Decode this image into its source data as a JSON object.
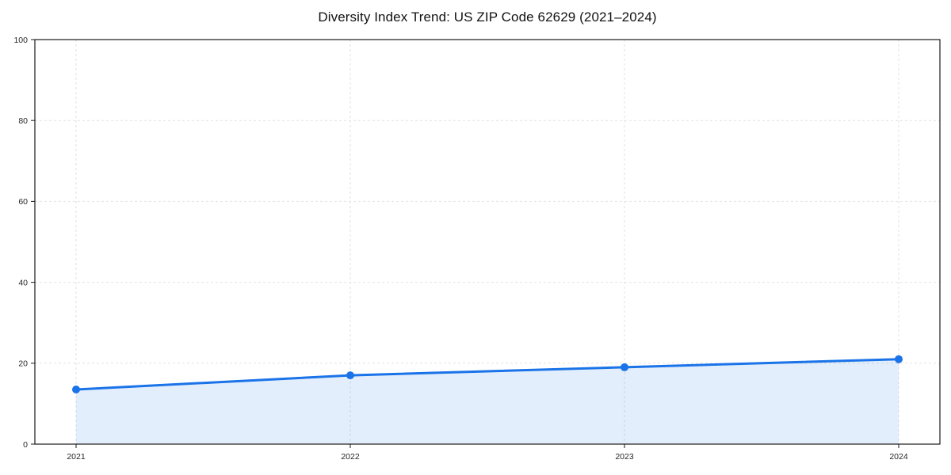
{
  "chart_data": {
    "type": "line",
    "title": "Diversity Index Trend: US ZIP Code 62629 (2021–2024)",
    "categories": [
      "2021",
      "2022",
      "2023",
      "2024"
    ],
    "series": [
      {
        "name": "Diversity Index",
        "values": [
          13.5,
          17,
          19,
          21
        ]
      }
    ],
    "xlabel": "",
    "ylabel": "",
    "ylim": [
      0,
      100
    ],
    "yticks": [
      0,
      20,
      40,
      60,
      80,
      100
    ],
    "grid": true,
    "grid_style": "dashed",
    "legend": false,
    "area_fill": true,
    "marker": "circle",
    "colors": {
      "line": "#1a73e8",
      "marker": "#1a73e8",
      "fill": "rgba(26, 115, 232, 0.12)",
      "grid": "#e2e2e2",
      "spine": "#1a1a1a",
      "tick": "#1a1a1a",
      "tick_label": "#262626",
      "title": "#111111",
      "background": "#ffffff"
    }
  }
}
